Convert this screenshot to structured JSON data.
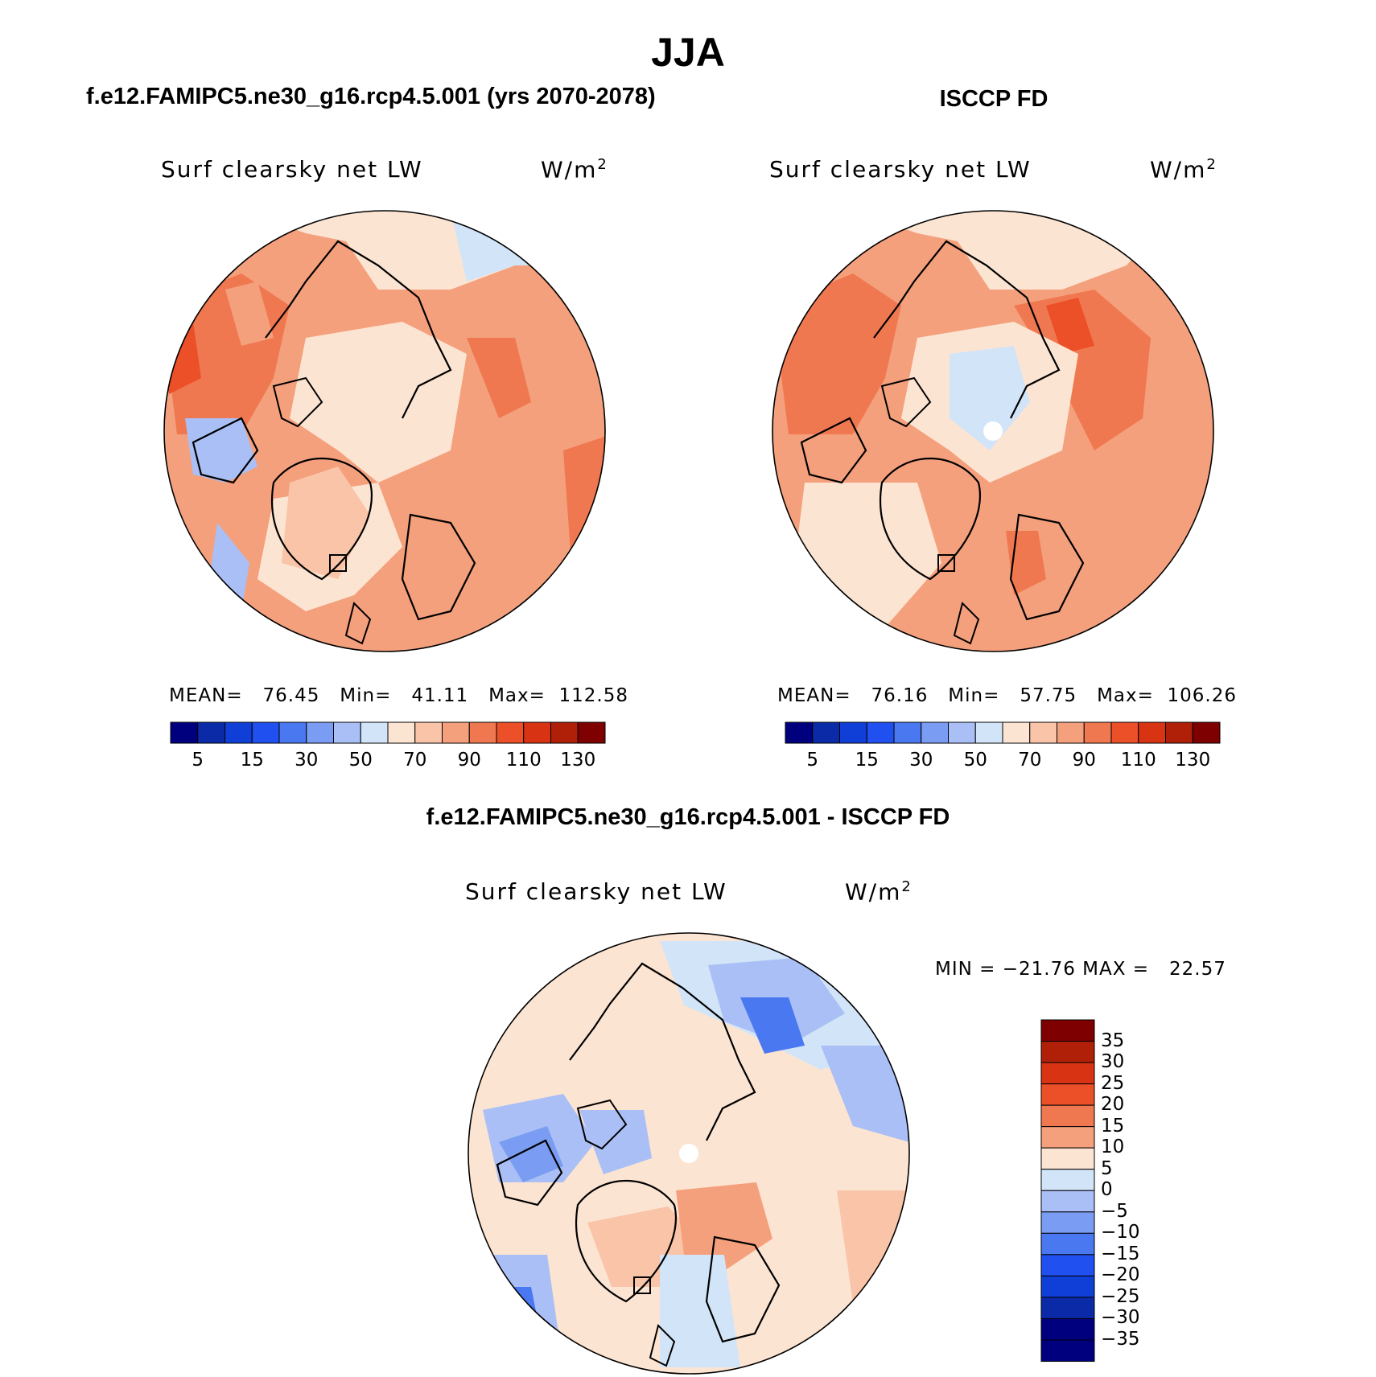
{
  "title": "JJA",
  "panels": [
    {
      "title": "f.e12.FAMIPC5.ne30_g16.rcp4.5.001 (yrs 2070-2078)",
      "variable": "Surf clearsky net LW",
      "units_base": "W/m",
      "units_exp": "2",
      "stats": "MEAN=   76.45   Min=   41.11   Max=  112.58",
      "colorbar_ticks": [
        "5",
        "15",
        "30",
        "50",
        "70",
        "90",
        "110",
        "130"
      ]
    },
    {
      "title": "ISCCP FD",
      "variable": "Surf clearsky net LW",
      "units_base": "W/m",
      "units_exp": "2",
      "stats": "MEAN=   76.16   Min=   57.75   Max=  106.26",
      "colorbar_ticks": [
        "5",
        "15",
        "30",
        "50",
        "70",
        "90",
        "110",
        "130"
      ]
    },
    {
      "title": "f.e12.FAMIPC5.ne30_g16.rcp4.5.001 - ISCCP FD",
      "variable": "Surf clearsky net LW",
      "units_base": "W/m",
      "units_exp": "2",
      "stats": "MIN = −21.76 MAX =   22.57",
      "colorbar_ticks": [
        "35",
        "30",
        "25",
        "20",
        "15",
        "10",
        "5",
        "0",
        "−5",
        "−10",
        "−15",
        "−20",
        "−25",
        "−30",
        "−35"
      ]
    }
  ],
  "colors": {
    "abs_scale": [
      "#00007f",
      "#0a2aa8",
      "#0f3fd6",
      "#2050f0",
      "#4a78f0",
      "#7a9cf2",
      "#aabff5",
      "#d2e4f8",
      "#fce4d2",
      "#f9c4a8",
      "#f4a07c",
      "#f07850",
      "#ec5028",
      "#d83414",
      "#b02008",
      "#7f0000"
    ],
    "diff_scale": [
      "#7f0000",
      "#b02008",
      "#d83414",
      "#ec5028",
      "#f07850",
      "#f4a07c",
      "#fce4d2",
      "#d2e4f8",
      "#aabff5",
      "#7a9cf2",
      "#4a78f0",
      "#2050f0",
      "#0f3fd6",
      "#0a2aa8",
      "#00007f"
    ]
  }
}
